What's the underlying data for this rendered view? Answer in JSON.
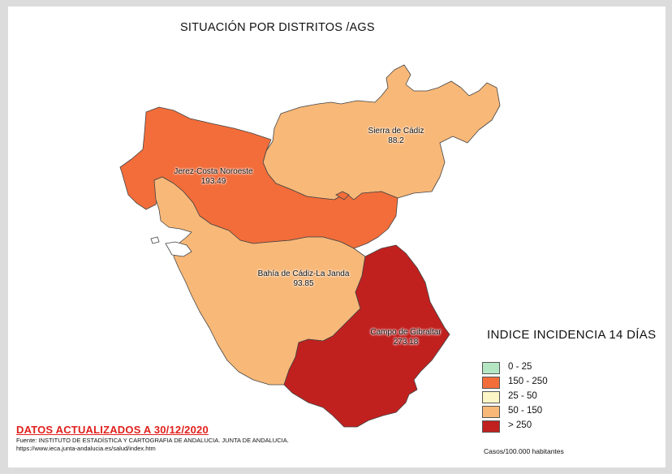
{
  "title": "SITUACIÓN POR DISTRITOS /AGS",
  "districts": [
    {
      "name": "Sierra de Cádiz",
      "value": "88.2",
      "color": "#f8b878"
    },
    {
      "name": "Jerez-Costa Noroeste",
      "value": "193.49",
      "color": "#f26d3a"
    },
    {
      "name": "Bahía de Cádiz-La Janda",
      "value": "93.85",
      "color": "#f8b878"
    },
    {
      "name": "Campo de Gibraltar",
      "value": "273.18",
      "color": "#c0211f"
    }
  ],
  "legend": {
    "title": "INDICE INCIDENCIA 14 DÍAS",
    "items": [
      {
        "label": "0 - 25",
        "color": "#b5e6c4"
      },
      {
        "label": "150 - 250",
        "color": "#f26d3a"
      },
      {
        "label": "25 - 50",
        "color": "#fcf6c7"
      },
      {
        "label": "50 - 150",
        "color": "#f8b878"
      },
      {
        "label": "> 250",
        "color": "#c0211f"
      }
    ]
  },
  "footer": {
    "updated": "DATOS ACTUALIZADOS A 30/12/2020",
    "source_line1": "Fuente: INSTITUTO DE ESTADÍSTICA Y CARTOGRAFIA DE ANDALUCIA. JUNTA DE ANDALUCIA.",
    "source_line2": "https://www.ieca.junta-andalucia.es/salud/index.htm",
    "units": "Casos/100.000 habitantes"
  }
}
